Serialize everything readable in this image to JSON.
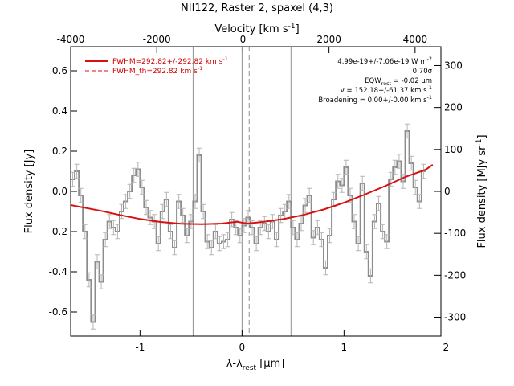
{
  "chart_data": {
    "type": "line",
    "title": "NII122, Raster 2, spaxel (4,3)",
    "xlabel": "λ-λ",
    "xlabel_sub": "rest",
    "xlabel_unit": " [μm]",
    "ylabel": "Flux density [Jy]",
    "x2label": "Velocity [km s",
    "x2label_sup": "-1",
    "x2label_end": "]",
    "y2label": "Flux density [MJy sr",
    "y2label_sup": "-1",
    "y2label_end": "]",
    "xlim": [
      -1.68,
      1.95
    ],
    "ylim": [
      -0.72,
      0.72
    ],
    "x2lim": [
      -4000,
      4600
    ],
    "y2lim": [
      -345,
      345
    ],
    "x_ticks": [
      "-1",
      "0",
      "1",
      "2"
    ],
    "x_tick_values": [
      -1,
      0,
      1,
      2
    ],
    "y_ticks": [
      "-0.6",
      "-0.4",
      "-0.2",
      "0.0",
      "0.2",
      "0.4",
      "0.6"
    ],
    "y_tick_values": [
      -0.6,
      -0.4,
      -0.2,
      0.0,
      0.2,
      0.4,
      0.6
    ],
    "x2_ticks": [
      "-4000",
      "-2000",
      "0",
      "2000",
      "4000"
    ],
    "x2_tick_values": [
      -4000,
      -2000,
      0,
      2000,
      4000
    ],
    "y2_ticks": [
      "-300",
      "-200",
      "-100",
      "0",
      "100",
      "200",
      "300"
    ],
    "y2_tick_values": [
      -300,
      -200,
      -100,
      0,
      100,
      200,
      300
    ],
    "vertical_lines": [
      {
        "x": -0.48,
        "style": "solid"
      },
      {
        "x": 0.0,
        "style": "solid"
      },
      {
        "x": 0.07,
        "style": "dashed"
      },
      {
        "x": 0.48,
        "style": "solid"
      }
    ],
    "legend": [
      {
        "label": "FWHM=292.82+/-292.82 km s",
        "sup": "-1",
        "style": "solid"
      },
      {
        "label": "FWHM_th=292.82 km s",
        "sup": "-1",
        "style": "dashed"
      }
    ],
    "legend_position": "top-left",
    "annotations": [
      {
        "label": "4.99e-19+/-7.06e-19 W m",
        "sup": "-2"
      },
      {
        "label": "0.70σ"
      },
      {
        "label": "EQW",
        "sub": "rest",
        "tail": " = -0.02 μm"
      },
      {
        "label": "v = 152.18+/-61.37 km s",
        "sup": "-1"
      },
      {
        "label": "Broadening = 0.00+/-0.00 km s",
        "sup": "-1"
      }
    ],
    "colors": {
      "data": "#8c8c8c",
      "errorbar": "#b5b5b5",
      "fit": "#d81010",
      "vline": "#909090"
    },
    "series": [
      {
        "role": "spectrum",
        "x": [
          -1.66,
          -1.62,
          -1.58,
          -1.54,
          -1.5,
          -1.46,
          -1.42,
          -1.38,
          -1.34,
          -1.3,
          -1.26,
          -1.22,
          -1.18,
          -1.14,
          -1.1,
          -1.06,
          -1.02,
          -0.98,
          -0.94,
          -0.9,
          -0.86,
          -0.82,
          -0.78,
          -0.74,
          -0.7,
          -0.66,
          -0.62,
          -0.58,
          -0.54,
          -0.5,
          -0.46,
          -0.42,
          -0.38,
          -0.34,
          -0.3,
          -0.26,
          -0.22,
          -0.18,
          -0.14,
          -0.1,
          -0.06,
          -0.02,
          0.02,
          0.06,
          0.1,
          0.14,
          0.18,
          0.22,
          0.26,
          0.3,
          0.34,
          0.38,
          0.42,
          0.46,
          0.5,
          0.54,
          0.58,
          0.62,
          0.66,
          0.7,
          0.74,
          0.78,
          0.82,
          0.86,
          0.9,
          0.94,
          0.98,
          1.02,
          1.06,
          1.1,
          1.14,
          1.18,
          1.22,
          1.26,
          1.3,
          1.34,
          1.38,
          1.42,
          1.46,
          1.5,
          1.54,
          1.58,
          1.62,
          1.66,
          1.7,
          1.74,
          1.78
        ],
        "y": [
          0.06,
          0.1,
          -0.02,
          -0.2,
          -0.44,
          -0.65,
          -0.35,
          -0.45,
          -0.24,
          -0.15,
          -0.18,
          -0.2,
          -0.1,
          -0.05,
          0.0,
          0.08,
          0.11,
          0.02,
          -0.08,
          -0.13,
          -0.15,
          -0.26,
          -0.1,
          -0.04,
          -0.2,
          -0.28,
          -0.05,
          -0.12,
          -0.22,
          -0.15,
          -0.05,
          0.18,
          -0.1,
          -0.25,
          -0.28,
          -0.2,
          -0.26,
          -0.25,
          -0.24,
          -0.14,
          -0.18,
          -0.22,
          -0.17,
          -0.13,
          -0.18,
          -0.26,
          -0.18,
          -0.16,
          -0.2,
          -0.15,
          -0.24,
          -0.12,
          -0.1,
          -0.05,
          -0.18,
          -0.24,
          -0.16,
          -0.07,
          -0.02,
          -0.23,
          -0.18,
          -0.24,
          -0.38,
          -0.22,
          -0.04,
          0.05,
          0.03,
          0.12,
          -0.02,
          -0.15,
          -0.26,
          0.04,
          -0.3,
          -0.42,
          -0.15,
          -0.06,
          -0.2,
          -0.25,
          0.06,
          0.12,
          0.15,
          0.05,
          0.3,
          0.14,
          0.02,
          -0.05,
          0.1
        ],
        "error": 0.035
      },
      {
        "role": "fit",
        "x": [
          -1.68,
          -1.4,
          -1.2,
          -1.0,
          -0.8,
          -0.6,
          -0.4,
          -0.2,
          -0.05,
          0.05,
          0.2,
          0.4,
          0.6,
          0.8,
          1.0,
          1.2,
          1.4,
          1.6,
          1.8,
          1.87
        ],
        "y": [
          -0.068,
          -0.095,
          -0.117,
          -0.137,
          -0.152,
          -0.161,
          -0.163,
          -0.16,
          -0.151,
          -0.16,
          -0.152,
          -0.138,
          -0.117,
          -0.09,
          -0.056,
          -0.016,
          0.026,
          0.072,
          0.108,
          0.133
        ]
      }
    ]
  }
}
